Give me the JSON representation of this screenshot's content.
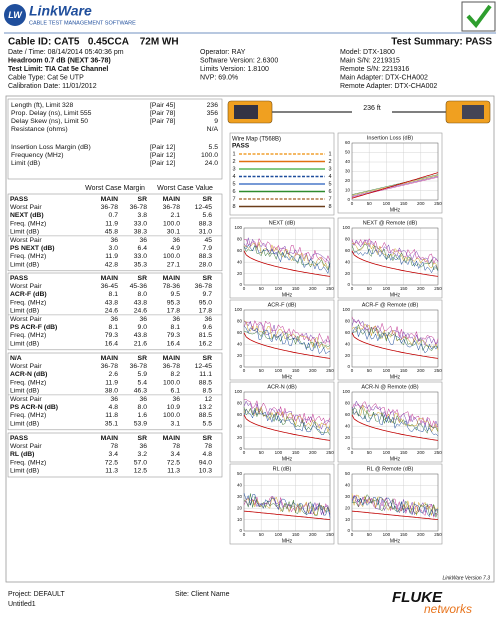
{
  "header": {
    "logo": "LinkWare",
    "tagline": "CABLE TEST MANAGEMENT SOFTWARE"
  },
  "info": {
    "cable_id": "Cable ID: CAT5   0.45CCA    72M WH",
    "summary": "Test Summary: PASS",
    "left": [
      "Date / Time: 08/14/2014  05:40:36 pm",
      "Headroom 0.7 dB (NEXT 36-78)",
      "Test Limit: TIA Cat 5e Channel",
      "Cable Type: Cat 5e UTP",
      "Calibration Date: 11/01/2012"
    ],
    "middle": [
      "Operator: RAY",
      "Software Version: 2.6300",
      "Limits Version: 1.8100",
      "NVP: 69.0%"
    ],
    "right": [
      "Model: DTX-1800",
      "Main S/N: 2219315",
      "Remote S/N: 2219316",
      "Main Adapter: DTX-CHA002",
      "Remote Adapter: DTX-CHA002"
    ]
  },
  "summary_table": {
    "rows": [
      [
        "Length (ft), Limit 328",
        "[Pair 45]",
        "236"
      ],
      [
        "Prop. Delay (ns), Limit 555",
        "[Pair 78]",
        "356"
      ],
      [
        "Delay Skew (ns), Limit 50",
        "[Pair 78]",
        "9"
      ],
      [
        "Resistance (ohms)",
        null,
        "N/A"
      ],
      [
        "Insertion Loss Margin (dB)",
        "[Pair 12]",
        "5.5"
      ],
      [
        "Frequency (MHz)",
        "[Pair 12]",
        "100.0"
      ],
      [
        "Limit (dB)",
        "[Pair 12]",
        "24.0"
      ]
    ]
  },
  "margin_headers": [
    "Worst Case Margin",
    "Worst Case Value"
  ],
  "sections": [
    {
      "rows": [
        [
          "PASS",
          "MAIN",
          "SR",
          "MAIN",
          "SR"
        ],
        [
          "Worst Pair",
          "36-78",
          "36-78",
          "36-78",
          "12-45"
        ],
        [
          "NEXT (dB)",
          "0.7",
          "3.8",
          "2.1",
          "5.6"
        ],
        [
          "Freq. (MHz)",
          "11.9",
          "33.0",
          "100.0",
          "88.3"
        ],
        [
          "Limit (dB)",
          "45.8",
          "38.3",
          "30.1",
          "31.0"
        ],
        [
          "Worst Pair",
          "36",
          "36",
          "36",
          "45"
        ],
        [
          "PS NEXT (dB)",
          "3.0",
          "6.4",
          "4.9",
          "7.9"
        ],
        [
          "Freq. (MHz)",
          "11.9",
          "33.0",
          "100.0",
          "88.3"
        ],
        [
          "Limit (dB)",
          "42.8",
          "35.3",
          "27.1",
          "28.0"
        ]
      ]
    },
    {
      "rows": [
        [
          "PASS",
          "MAIN",
          "SR",
          "MAIN",
          "SR"
        ],
        [
          "Worst Pair",
          "36-45",
          "45-36",
          "78-36",
          "36-78"
        ],
        [
          "ACR-F (dB)",
          "8.1",
          "8.0",
          "9.5",
          "9.7"
        ],
        [
          "Freq. (MHz)",
          "43.8",
          "43.8",
          "95.3",
          "95.0"
        ],
        [
          "Limit (dB)",
          "24.6",
          "24.6",
          "17.8",
          "17.8"
        ],
        [
          "Worst Pair",
          "36",
          "36",
          "36",
          "36"
        ],
        [
          "PS ACR-F (dB)",
          "8.1",
          "9.0",
          "8.1",
          "9.6"
        ],
        [
          "Freq. (MHz)",
          "79.3",
          "43.8",
          "79.3",
          "81.5"
        ],
        [
          "Limit (dB)",
          "16.4",
          "21.6",
          "16.4",
          "16.2"
        ]
      ]
    },
    {
      "rows": [
        [
          "N/A",
          "MAIN",
          "SR",
          "MAIN",
          "SR"
        ],
        [
          "Worst Pair",
          "36-78",
          "36-78",
          "36-78",
          "12-45"
        ],
        [
          "ACR-N (dB)",
          "2.6",
          "5.9",
          "8.2",
          "11.1"
        ],
        [
          "Freq. (MHz)",
          "11.9",
          "5.4",
          "100.0",
          "88.5"
        ],
        [
          "Limit (dB)",
          "38.0",
          "46.3",
          "6.1",
          "8.5"
        ],
        [
          "Worst Pair",
          "36",
          "36",
          "36",
          "12"
        ],
        [
          "PS ACR-N (dB)",
          "4.8",
          "8.0",
          "10.9",
          "13.2"
        ],
        [
          "Freq. (MHz)",
          "11.8",
          "1.6",
          "100.0",
          "88.5"
        ],
        [
          "Limit (dB)",
          "35.1",
          "53.9",
          "3.1",
          "5.5"
        ]
      ]
    },
    {
      "rows": [
        [
          "PASS",
          "MAIN",
          "SR",
          "MAIN",
          "SR"
        ],
        [
          "Worst Pair",
          "78",
          "36",
          "78",
          "78"
        ],
        [
          "RL (dB)",
          "3.4",
          "3.2",
          "3.4",
          "4.8"
        ],
        [
          "Freq. (MHz)",
          "72.5",
          "57.0",
          "72.5",
          "94.0"
        ],
        [
          "Limit (dB)",
          "11.3",
          "12.5",
          "11.3",
          "10.3"
        ]
      ]
    }
  ],
  "device": {
    "length": "236 ft"
  },
  "wire_map": {
    "title": "Wire Map (T568B)",
    "result": "PASS",
    "pins": [
      1,
      2,
      3,
      4,
      5,
      6,
      7,
      8
    ]
  },
  "charts": [
    {
      "title": "Insertion Loss (dB)",
      "ylim": [
        0,
        60
      ],
      "yticks": [
        0,
        10,
        20,
        30,
        40,
        50,
        60
      ],
      "xlim": [
        0,
        250
      ],
      "xticks": [
        0,
        50,
        100,
        150,
        200,
        250
      ],
      "xlabel": "MHz"
    },
    {
      "title": "NEXT (dB)",
      "ylim": [
        0,
        100
      ],
      "yticks": [
        0,
        20,
        40,
        60,
        80,
        100
      ],
      "xlim": [
        0,
        250
      ],
      "xticks": [
        0,
        50,
        100,
        150,
        200,
        250
      ],
      "xlabel": "MHz"
    },
    {
      "title": "NEXT @ Remote (dB)",
      "ylim": [
        0,
        100
      ],
      "yticks": [
        0,
        20,
        40,
        60,
        80,
        100
      ],
      "xlim": [
        0,
        250
      ],
      "xticks": [
        0,
        50,
        100,
        150,
        200,
        250
      ],
      "xlabel": "MHz"
    },
    {
      "title": "ACR-F (dB)",
      "ylim": [
        0,
        100
      ],
      "yticks": [
        0,
        20,
        40,
        60,
        80,
        100
      ],
      "xlim": [
        0,
        250
      ],
      "xticks": [
        0,
        50,
        100,
        150,
        200,
        250
      ],
      "xlabel": "MHz"
    },
    {
      "title": "ACR-F @ Remote (dB)",
      "ylim": [
        0,
        100
      ],
      "yticks": [
        0,
        20,
        40,
        60,
        80,
        100
      ],
      "xlim": [
        0,
        250
      ],
      "xticks": [
        0,
        50,
        100,
        150,
        200,
        250
      ],
      "xlabel": "MHz"
    },
    {
      "title": "ACR-N (dB)",
      "ylim": [
        0,
        100
      ],
      "yticks": [
        0,
        20,
        40,
        60,
        80,
        100
      ],
      "xlim": [
        0,
        250
      ],
      "xticks": [
        0,
        50,
        100,
        150,
        200,
        250
      ],
      "xlabel": "MHz"
    },
    {
      "title": "ACR-N @ Remote (dB)",
      "ylim": [
        0,
        100
      ],
      "yticks": [
        0,
        20,
        40,
        60,
        80,
        100
      ],
      "xlim": [
        0,
        250
      ],
      "xticks": [
        0,
        50,
        100,
        150,
        200,
        250
      ],
      "xlabel": "MHz"
    },
    {
      "title": "RL (dB)",
      "ylim": [
        0,
        50
      ],
      "yticks": [
        0,
        10,
        20,
        30,
        40,
        50
      ],
      "xlim": [
        0,
        250
      ],
      "xticks": [
        0,
        50,
        100,
        150,
        200,
        250
      ],
      "xlabel": "MHz"
    },
    {
      "title": "RL @ Remote (dB)",
      "ylim": [
        0,
        50
      ],
      "yticks": [
        0,
        10,
        20,
        30,
        40,
        50
      ],
      "xlim": [
        0,
        250
      ],
      "xticks": [
        0,
        50,
        100,
        150,
        200,
        250
      ],
      "xlabel": "MHz"
    }
  ],
  "footer": {
    "version": "LinkWare Version 7.3",
    "project": "Project: DEFAULT",
    "file": "Untitled1",
    "site": "Site: Client Name",
    "brand": "FLUKE",
    "brand_sub": "networks"
  }
}
